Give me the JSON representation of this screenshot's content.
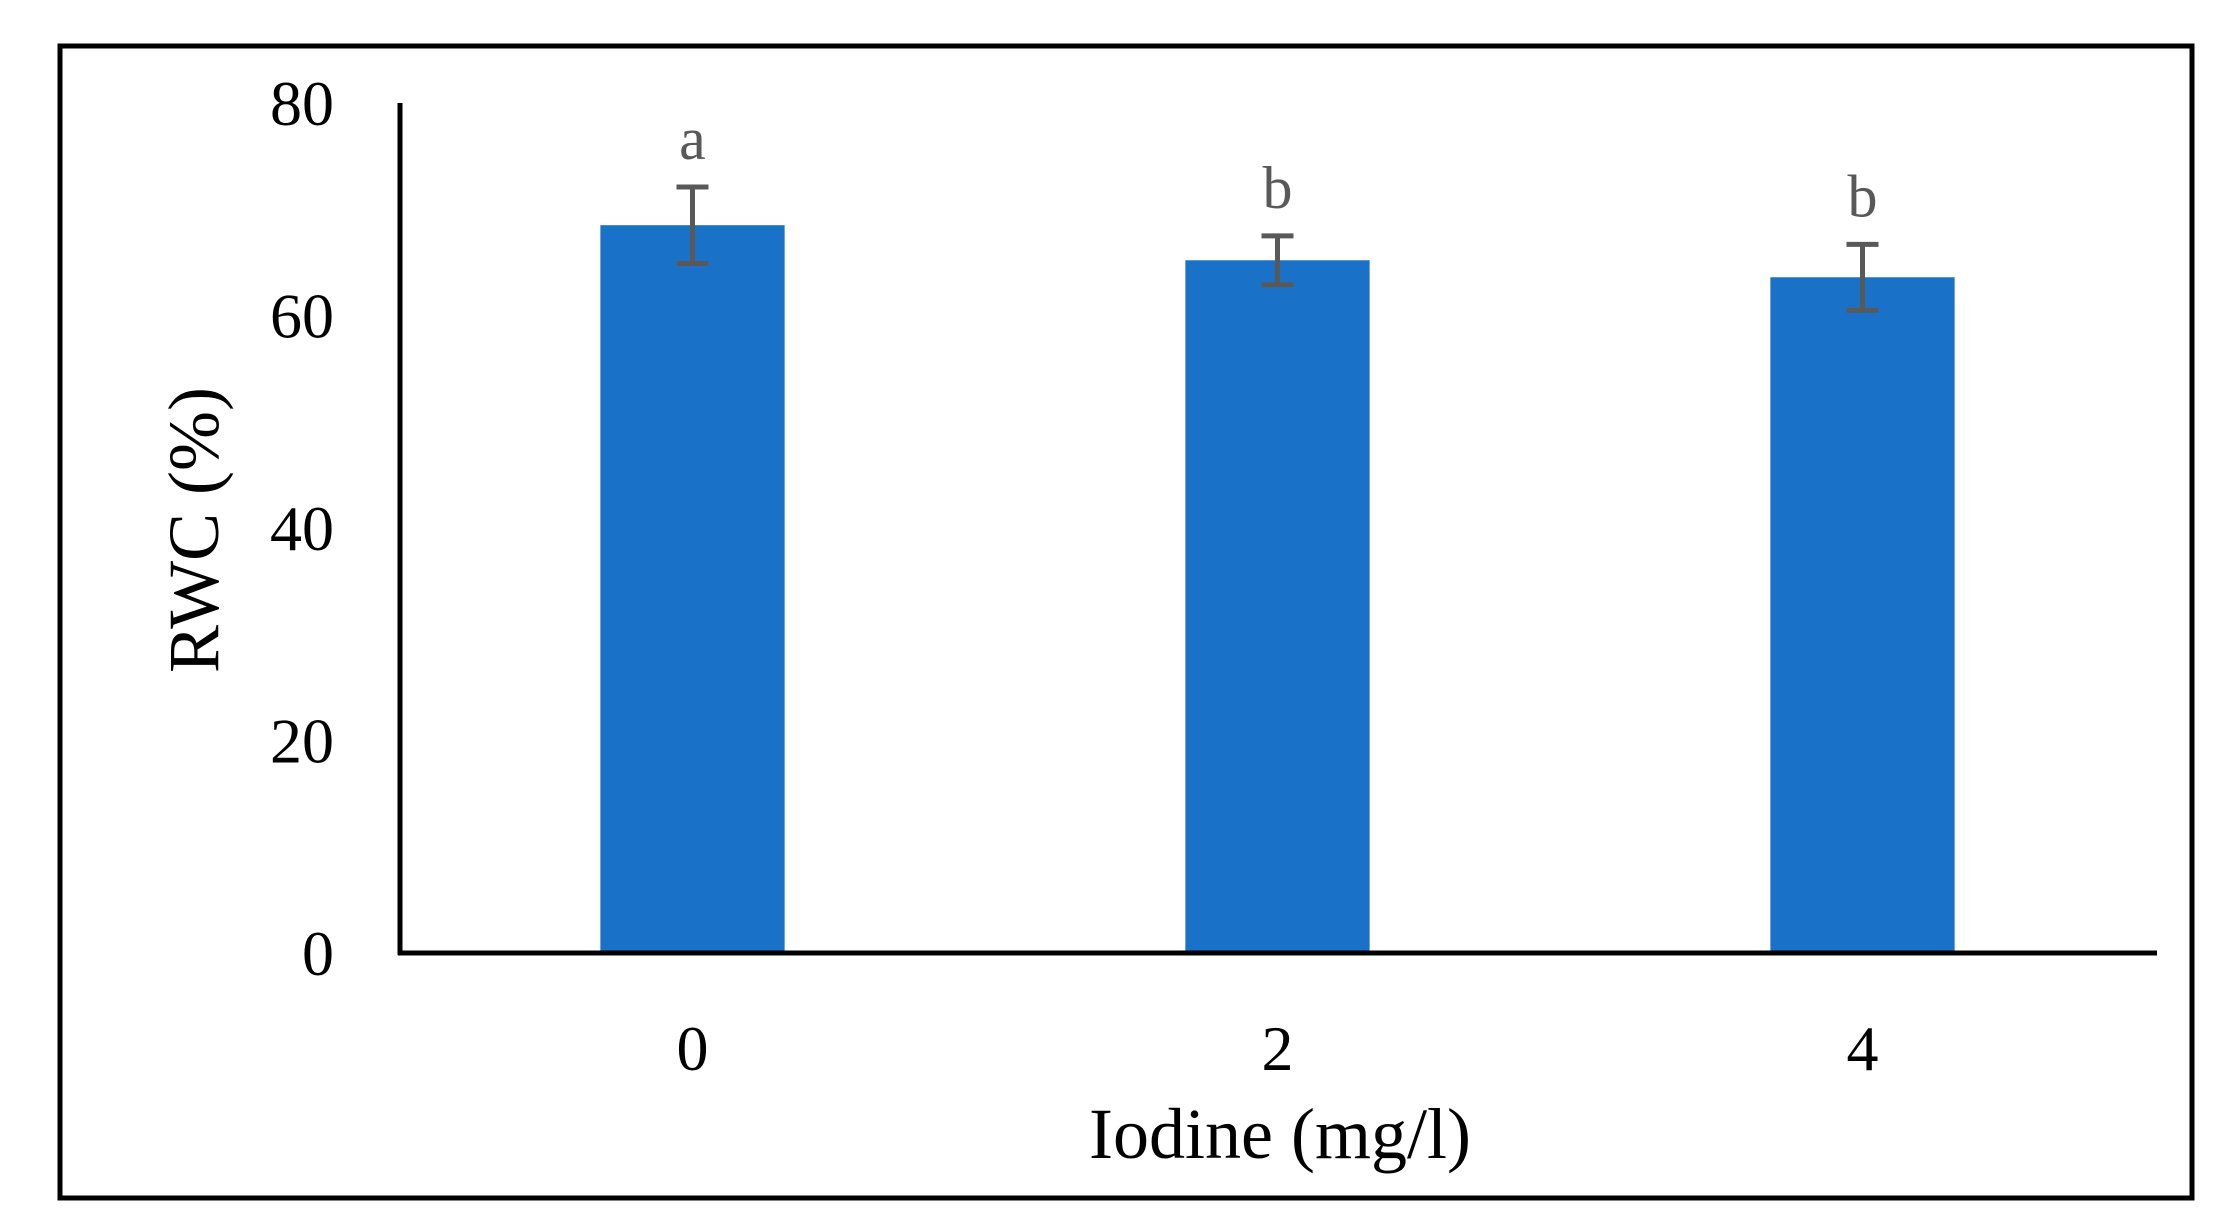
{
  "chart_data": {
    "type": "bar",
    "categories": [
      "0",
      "2",
      "4"
    ],
    "values": [
      68.5,
      65.2,
      63.6
    ],
    "errors": [
      3.6,
      2.3,
      3.1
    ],
    "significance_labels": [
      "a",
      "b",
      "b"
    ],
    "title": "",
    "xlabel": "Iodine (mg/l)",
    "ylabel": "RWC (%)",
    "ylim": [
      0,
      80
    ],
    "yticks": [
      "0",
      "20",
      "40",
      "60",
      "80"
    ],
    "grid": false,
    "legend": "none",
    "colors": {
      "bar": "#1a72c8",
      "error_bar": "#595959",
      "axis": "#000000",
      "frame": "#000000",
      "sig_label": "#595959"
    }
  }
}
